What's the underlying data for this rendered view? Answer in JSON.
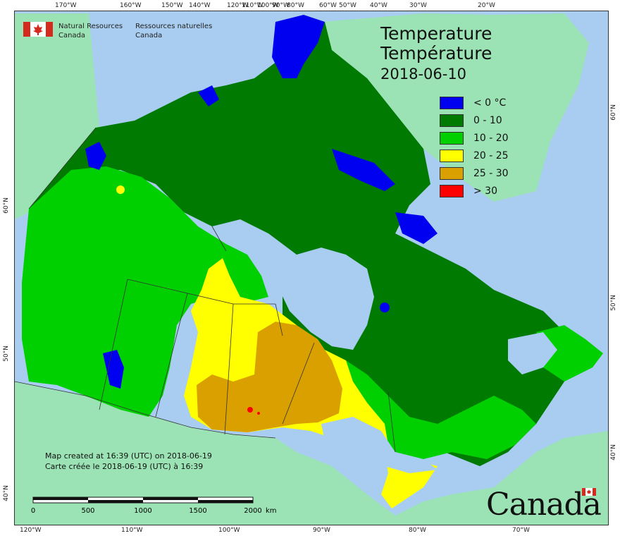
{
  "map": {
    "title_en": "Temperature",
    "title_fr": "Température",
    "date": "2018-06-10",
    "legend": [
      {
        "label": "< 0 °C",
        "color": "#0000f0"
      },
      {
        "label": "0 - 10",
        "color": "#007a00"
      },
      {
        "label": "10 - 20",
        "color": "#00d000"
      },
      {
        "label": "20 - 25",
        "color": "#ffff00"
      },
      {
        "label": "25 - 30",
        "color": "#d9a000"
      },
      {
        "label": "> 30",
        "color": "#ff0000"
      }
    ],
    "colors": {
      "ocean": "#a8cdf0",
      "foreign_land": "#9be3b4",
      "border": "#333333"
    }
  },
  "agency": {
    "en_line1": "Natural Resources",
    "en_line2": "Canada",
    "fr_line1": "Ressources naturelles",
    "fr_line2": "Canada"
  },
  "credits": {
    "en": "Map created at 16:39 (UTC) on 2018-06-19",
    "fr": "Carte créée le 2018-06-19 (UTC) à 16:39"
  },
  "scale": {
    "labels": [
      "0",
      "500",
      "1000",
      "1500",
      "2000"
    ],
    "unit": "km"
  },
  "wordmark": "Canada",
  "graticule": {
    "top": [
      "170°W",
      "160°W",
      "150°W",
      "140°W",
      "120°W",
      "110°W",
      "100°W",
      "90°W",
      "80°W",
      "60°W",
      "50°W",
      "40°W",
      "30°W",
      "20°W"
    ],
    "bottom": [
      "120°W",
      "110°W",
      "100°W",
      "90°W",
      "80°W",
      "70°W"
    ],
    "left": [
      "60°N",
      "50°N",
      "40°N"
    ],
    "right": [
      "60°N",
      "50°N",
      "40°N"
    ]
  }
}
